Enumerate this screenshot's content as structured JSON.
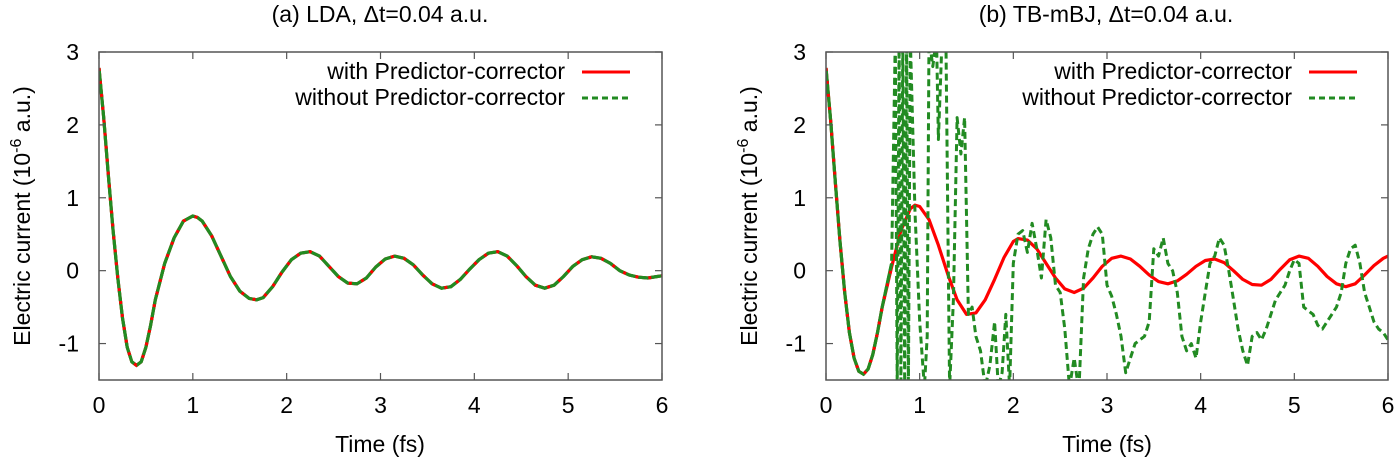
{
  "colors": {
    "with_pc": "#ff0000",
    "without_pc": "#228b22",
    "axis": "#555555",
    "text": "#000000"
  },
  "chart_data": [
    {
      "type": "line",
      "title": "(a) LDA, Δt=0.04 a.u.",
      "xlabel": "Time (fs)",
      "ylabel": "Electric current (10^-6 a.u.)",
      "ylabel_parts": {
        "pre": "Electric current (10",
        "sup": "-6",
        "post": " a.u.)"
      },
      "xlim": [
        0,
        6
      ],
      "ylim": [
        -1.5,
        3
      ],
      "xticks": [
        0,
        1,
        2,
        3,
        4,
        5,
        6
      ],
      "yticks": [
        -1,
        0,
        1,
        2,
        3
      ],
      "grid": false,
      "legend_position": "top-right",
      "series": [
        {
          "name": "with Predictor-corrector",
          "style": "solid",
          "x": [
            0,
            0.05,
            0.1,
            0.15,
            0.2,
            0.25,
            0.3,
            0.35,
            0.4,
            0.45,
            0.5,
            0.55,
            0.6,
            0.7,
            0.8,
            0.9,
            1.0,
            1.05,
            1.1,
            1.2,
            1.3,
            1.4,
            1.5,
            1.6,
            1.68,
            1.75,
            1.85,
            1.95,
            2.05,
            2.15,
            2.25,
            2.35,
            2.45,
            2.55,
            2.65,
            2.75,
            2.85,
            2.95,
            3.05,
            3.15,
            3.25,
            3.35,
            3.45,
            3.55,
            3.65,
            3.75,
            3.85,
            3.95,
            4.05,
            4.15,
            4.25,
            4.35,
            4.45,
            4.55,
            4.65,
            4.75,
            4.85,
            4.95,
            5.05,
            5.15,
            5.25,
            5.35,
            5.45,
            5.55,
            5.65,
            5.75,
            5.85,
            5.95,
            6.0
          ],
          "values": [
            2.78,
            2.1,
            1.3,
            0.55,
            -0.1,
            -0.65,
            -1.05,
            -1.25,
            -1.3,
            -1.25,
            -1.05,
            -0.75,
            -0.4,
            0.1,
            0.45,
            0.68,
            0.75,
            0.73,
            0.68,
            0.48,
            0.2,
            -0.08,
            -0.28,
            -0.38,
            -0.4,
            -0.37,
            -0.22,
            -0.02,
            0.15,
            0.24,
            0.26,
            0.2,
            0.06,
            -0.08,
            -0.17,
            -0.18,
            -0.1,
            0.05,
            0.16,
            0.2,
            0.17,
            0.08,
            -0.06,
            -0.18,
            -0.24,
            -0.22,
            -0.12,
            0.02,
            0.15,
            0.24,
            0.26,
            0.2,
            0.07,
            -0.08,
            -0.2,
            -0.24,
            -0.2,
            -0.08,
            0.06,
            0.15,
            0.19,
            0.17,
            0.1,
            0.0,
            -0.06,
            -0.09,
            -0.1,
            -0.08,
            -0.07
          ]
        },
        {
          "name": "without Predictor-corrector",
          "style": "dashed",
          "x": [
            0,
            0.05,
            0.1,
            0.15,
            0.2,
            0.25,
            0.3,
            0.35,
            0.4,
            0.45,
            0.5,
            0.55,
            0.6,
            0.7,
            0.8,
            0.9,
            1.0,
            1.05,
            1.1,
            1.2,
            1.3,
            1.4,
            1.5,
            1.6,
            1.68,
            1.75,
            1.85,
            1.95,
            2.05,
            2.15,
            2.25,
            2.35,
            2.45,
            2.55,
            2.65,
            2.75,
            2.85,
            2.95,
            3.05,
            3.15,
            3.25,
            3.35,
            3.45,
            3.55,
            3.65,
            3.75,
            3.85,
            3.95,
            4.05,
            4.15,
            4.25,
            4.35,
            4.45,
            4.55,
            4.65,
            4.75,
            4.85,
            4.95,
            5.05,
            5.15,
            5.25,
            5.35,
            5.45,
            5.55,
            5.65,
            5.75,
            5.85,
            5.95,
            6.0
          ],
          "values": [
            2.78,
            2.1,
            1.3,
            0.55,
            -0.1,
            -0.65,
            -1.05,
            -1.25,
            -1.3,
            -1.25,
            -1.05,
            -0.75,
            -0.4,
            0.1,
            0.45,
            0.68,
            0.75,
            0.73,
            0.68,
            0.48,
            0.2,
            -0.08,
            -0.28,
            -0.38,
            -0.4,
            -0.37,
            -0.22,
            -0.02,
            0.15,
            0.24,
            0.26,
            0.2,
            0.06,
            -0.08,
            -0.17,
            -0.18,
            -0.1,
            0.05,
            0.16,
            0.2,
            0.17,
            0.08,
            -0.06,
            -0.18,
            -0.24,
            -0.22,
            -0.12,
            0.02,
            0.15,
            0.24,
            0.26,
            0.2,
            0.07,
            -0.08,
            -0.2,
            -0.24,
            -0.2,
            -0.08,
            0.06,
            0.15,
            0.19,
            0.17,
            0.1,
            0.0,
            -0.06,
            -0.09,
            -0.1,
            -0.08,
            -0.07
          ]
        }
      ]
    },
    {
      "type": "line",
      "title": "(b) TB-mBJ, Δt=0.04 a.u.",
      "xlabel": "Time (fs)",
      "ylabel": "Electric current (10^-6 a.u.)",
      "ylabel_parts": {
        "pre": "Electric current (10",
        "sup": "-6",
        "post": " a.u.)"
      },
      "xlim": [
        0,
        6
      ],
      "ylim": [
        -1.5,
        3
      ],
      "xticks": [
        0,
        1,
        2,
        3,
        4,
        5,
        6
      ],
      "yticks": [
        -1,
        0,
        1,
        2,
        3
      ],
      "grid": false,
      "legend_position": "top-right",
      "series": [
        {
          "name": "with Predictor-corrector",
          "style": "solid",
          "x": [
            0,
            0.05,
            0.1,
            0.15,
            0.2,
            0.25,
            0.3,
            0.35,
            0.4,
            0.45,
            0.5,
            0.55,
            0.6,
            0.7,
            0.8,
            0.9,
            0.95,
            1.0,
            1.1,
            1.2,
            1.3,
            1.4,
            1.5,
            1.6,
            1.7,
            1.8,
            1.9,
            2.0,
            2.05,
            2.15,
            2.25,
            2.35,
            2.45,
            2.55,
            2.65,
            2.75,
            2.85,
            2.95,
            3.05,
            3.15,
            3.25,
            3.35,
            3.45,
            3.55,
            3.65,
            3.75,
            3.85,
            3.95,
            4.05,
            4.15,
            4.25,
            4.35,
            4.45,
            4.55,
            4.65,
            4.75,
            4.85,
            4.95,
            5.05,
            5.15,
            5.25,
            5.35,
            5.45,
            5.55,
            5.65,
            5.75,
            5.85,
            5.95,
            6.0
          ],
          "values": [
            2.78,
            2.05,
            1.2,
            0.4,
            -0.3,
            -0.85,
            -1.2,
            -1.38,
            -1.42,
            -1.35,
            -1.15,
            -0.85,
            -0.5,
            0.05,
            0.55,
            0.85,
            0.9,
            0.88,
            0.7,
            0.35,
            -0.05,
            -0.4,
            -0.6,
            -0.58,
            -0.4,
            -0.12,
            0.18,
            0.4,
            0.44,
            0.42,
            0.3,
            0.1,
            -0.1,
            -0.25,
            -0.3,
            -0.24,
            -0.1,
            0.06,
            0.17,
            0.2,
            0.16,
            0.06,
            -0.06,
            -0.15,
            -0.18,
            -0.14,
            -0.05,
            0.06,
            0.14,
            0.16,
            0.11,
            0.0,
            -0.12,
            -0.19,
            -0.2,
            -0.12,
            0.02,
            0.15,
            0.2,
            0.17,
            0.06,
            -0.08,
            -0.18,
            -0.22,
            -0.18,
            -0.06,
            0.07,
            0.17,
            0.2
          ]
        },
        {
          "name": "without Predictor-corrector",
          "style": "dashed",
          "x": [
            0,
            0.05,
            0.1,
            0.15,
            0.2,
            0.25,
            0.3,
            0.35,
            0.4,
            0.45,
            0.5,
            0.55,
            0.6,
            0.65,
            0.7,
            0.74,
            0.76,
            0.78,
            0.8,
            0.82,
            0.84,
            0.86,
            0.88,
            0.9,
            0.95,
            1.0,
            1.05,
            1.08,
            1.1,
            1.14,
            1.18,
            1.2,
            1.24,
            1.28,
            1.32,
            1.36,
            1.4,
            1.44,
            1.48,
            1.52,
            1.56,
            1.6,
            1.65,
            1.7,
            1.75,
            1.8,
            1.84,
            1.88,
            1.92,
            1.96,
            2.0,
            2.05,
            2.1,
            2.15,
            2.2,
            2.25,
            2.3,
            2.35,
            2.4,
            2.45,
            2.5,
            2.55,
            2.6,
            2.65,
            2.7,
            2.75,
            2.8,
            2.85,
            2.9,
            2.95,
            3.0,
            3.05,
            3.1,
            3.15,
            3.2,
            3.25,
            3.3,
            3.35,
            3.4,
            3.45,
            3.5,
            3.55,
            3.6,
            3.65,
            3.7,
            3.75,
            3.8,
            3.85,
            3.9,
            3.95,
            4.0,
            4.05,
            4.1,
            4.15,
            4.2,
            4.25,
            4.3,
            4.35,
            4.4,
            4.45,
            4.5,
            4.55,
            4.6,
            4.65,
            4.7,
            4.75,
            4.8,
            4.85,
            4.9,
            4.95,
            5.0,
            5.05,
            5.1,
            5.15,
            5.2,
            5.25,
            5.3,
            5.35,
            5.4,
            5.45,
            5.5,
            5.55,
            5.6,
            5.65,
            5.7,
            5.75,
            5.8,
            5.85,
            5.9,
            5.95,
            6.0
          ],
          "values": [
            2.78,
            2.05,
            1.2,
            0.4,
            -0.3,
            -0.85,
            -1.2,
            -1.38,
            -1.42,
            -1.35,
            -1.15,
            -0.85,
            -0.5,
            -0.2,
            0.1,
            3.2,
            -1.6,
            3.2,
            -1.6,
            3.2,
            -1.6,
            3.2,
            -1.6,
            3.2,
            0.8,
            -0.7,
            -1.6,
            -0.9,
            3.2,
            2.8,
            3.2,
            1.8,
            3.2,
            3.2,
            -1.6,
            -0.4,
            2.1,
            1.6,
            2.1,
            -0.6,
            -0.5,
            -0.9,
            -1.1,
            -1.6,
            -1.3,
            -0.7,
            -1.6,
            -1.4,
            -0.6,
            -1.6,
            0.1,
            0.5,
            0.55,
            0.25,
            0.65,
            0.3,
            -0.1,
            0.7,
            0.45,
            -0.2,
            -0.3,
            -0.8,
            -1.6,
            -1.2,
            -1.65,
            -0.1,
            0.3,
            0.5,
            0.6,
            0.5,
            -0.2,
            -0.35,
            -0.6,
            -0.9,
            -1.4,
            -1.2,
            -1.0,
            -0.95,
            -0.9,
            -0.7,
            0.3,
            0.2,
            0.45,
            0.1,
            0.0,
            -0.3,
            -0.9,
            -1.1,
            -1.0,
            -1.2,
            -0.7,
            -0.3,
            0.1,
            0.2,
            0.45,
            0.35,
            0.0,
            -0.4,
            -0.8,
            -1.1,
            -1.3,
            -0.9,
            -0.85,
            -0.95,
            -0.8,
            -0.6,
            -0.4,
            -0.3,
            -0.2,
            0.0,
            0.15,
            0.1,
            -0.5,
            -0.55,
            -0.6,
            -0.75,
            -0.8,
            -0.7,
            -0.6,
            -0.5,
            -0.3,
            0.1,
            0.3,
            0.35,
            0.1,
            -0.3,
            -0.5,
            -0.7,
            -0.8,
            -0.85,
            -0.95
          ]
        }
      ]
    }
  ]
}
